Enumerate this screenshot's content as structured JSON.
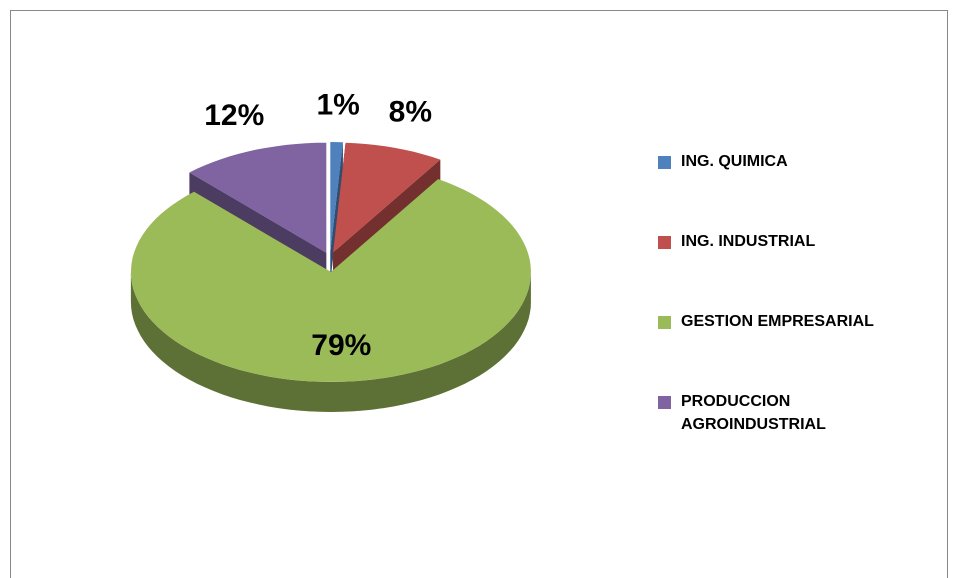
{
  "chart_data": {
    "type": "pie",
    "categories": [
      "ING. QUIMICA",
      "ING. INDUSTRIAL",
      "GESTION EMPRESARIAL",
      "PRODUCCION AGROINDUSTRIAL"
    ],
    "values": [
      1,
      8,
      79,
      12
    ],
    "value_labels": [
      "1%",
      "8%",
      "79%",
      "12%"
    ],
    "colors": [
      "#4f81bd",
      "#c0504d",
      "#9bbb59",
      "#8064a2"
    ],
    "legend": "right"
  }
}
